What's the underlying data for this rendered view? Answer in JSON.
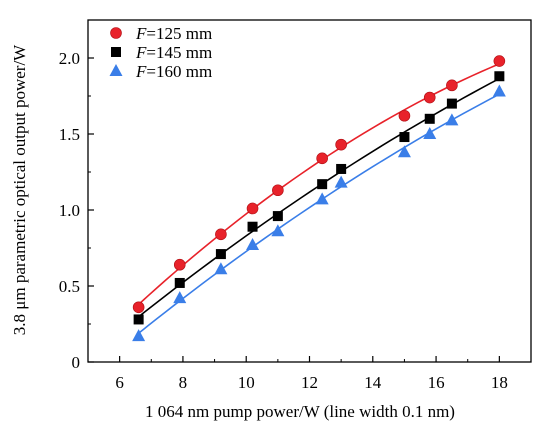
{
  "chart_data": {
    "type": "scatter",
    "xlabel": "1 064 nm pump power/W (line width 0.1 nm)",
    "ylabel": "3.8 μm parametric optical output power/W",
    "xlim": [
      5,
      19
    ],
    "ylim": [
      0,
      2.25
    ],
    "xticks": [
      "6",
      "8",
      "10",
      "12",
      "14",
      "16",
      "18"
    ],
    "yticks": [
      "0",
      "0.5",
      "1.0",
      "1.5",
      "2.0"
    ],
    "grid": false,
    "legend_position": "top-left",
    "series": [
      {
        "name": "=125 mm",
        "name_prefix": "F",
        "marker": "circle",
        "color": "#e8222a",
        "x": [
          6.6,
          7.9,
          9.2,
          10.2,
          11.0,
          12.4,
          13.0,
          15.0,
          15.8,
          16.5,
          18.0
        ],
        "y": [
          0.36,
          0.64,
          0.84,
          1.01,
          1.13,
          1.34,
          1.43,
          1.62,
          1.74,
          1.82,
          1.98
        ]
      },
      {
        "name": "=145 mm",
        "name_prefix": "F",
        "marker": "square",
        "color": "#000000",
        "x": [
          6.6,
          7.9,
          9.2,
          10.2,
          11.0,
          12.4,
          13.0,
          15.0,
          15.8,
          16.5,
          18.0
        ],
        "y": [
          0.28,
          0.52,
          0.71,
          0.89,
          0.96,
          1.17,
          1.27,
          1.48,
          1.6,
          1.7,
          1.88
        ]
      },
      {
        "name": "=160 mm",
        "name_prefix": "F",
        "marker": "triangle",
        "color": "#3a7ee8",
        "x": [
          6.6,
          7.9,
          9.2,
          10.2,
          11.0,
          12.4,
          13.0,
          15.0,
          15.8,
          16.5,
          18.0
        ],
        "y": [
          0.17,
          0.42,
          0.61,
          0.77,
          0.86,
          1.07,
          1.18,
          1.38,
          1.5,
          1.59,
          1.78
        ]
      }
    ]
  }
}
